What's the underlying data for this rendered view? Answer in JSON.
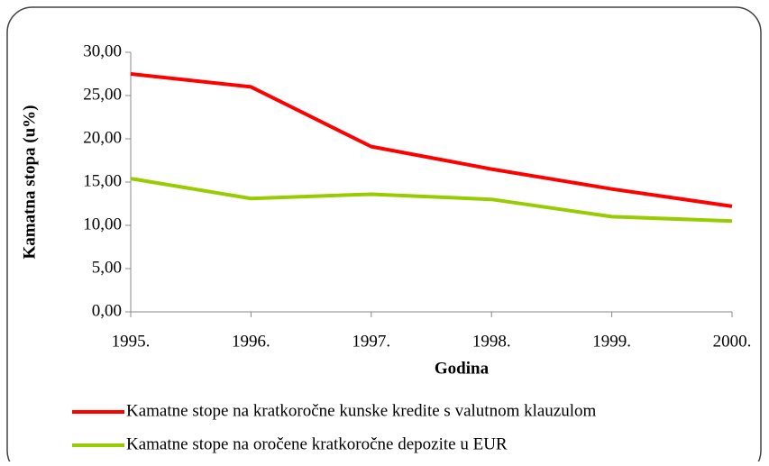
{
  "chart_data": {
    "type": "line",
    "xlabel": "Godina",
    "ylabel": "Kamatna stopa (u%)",
    "categories": [
      "1995.",
      "1996.",
      "1997.",
      "1998.",
      "1999.",
      "2000."
    ],
    "series": [
      {
        "name": "Kamatne stope na kratkoročne kunske kredite s valutnom klauzulom",
        "color": "#ff0000",
        "values": [
          27.5,
          26.0,
          19.1,
          16.5,
          14.2,
          12.2
        ]
      },
      {
        "name": "Kamatne stope na oročene kratkoročne depozite u EUR",
        "color": "#99cc00",
        "values": [
          15.4,
          13.1,
          13.6,
          13.0,
          11.0,
          10.5
        ]
      }
    ],
    "ylim": [
      0,
      30
    ],
    "yticks": [
      {
        "value": 0,
        "label": "0,00"
      },
      {
        "value": 5,
        "label": "5,00"
      },
      {
        "value": 10,
        "label": "10,00"
      },
      {
        "value": 15,
        "label": "15,00"
      },
      {
        "value": 20,
        "label": "20,00"
      },
      {
        "value": 25,
        "label": "25,00"
      },
      {
        "value": 30,
        "label": "30,00"
      }
    ]
  }
}
